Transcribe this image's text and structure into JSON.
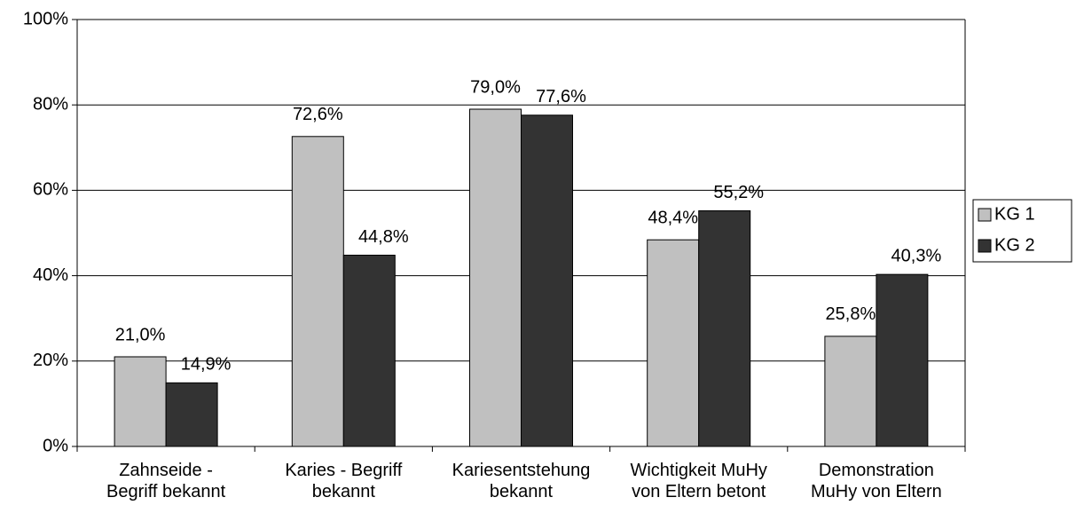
{
  "chart_data": {
    "type": "bar",
    "categories": [
      "Zahnseide -\nBegriff bekannt",
      "Karies - Begriff\nbekannt",
      "Kariesentstehung\nbekannt",
      "Wichtigkeit MuHy\nvon Eltern betont",
      "Demonstration\nMuHy von Eltern"
    ],
    "series": [
      {
        "name": "KG 1",
        "color": "#c0c0c0",
        "values": [
          21.0,
          72.6,
          79.0,
          48.4,
          25.8
        ],
        "value_labels": [
          "21,0%",
          "72,6%",
          "79,0%",
          "48,4%",
          "25,8%"
        ]
      },
      {
        "name": "KG 2",
        "color": "#333333",
        "values": [
          14.9,
          44.8,
          77.6,
          55.2,
          40.3
        ],
        "value_labels": [
          "14,9%",
          "44,8%",
          "77,6%",
          "55,2%",
          "40,3%"
        ]
      }
    ],
    "ylim": [
      0,
      100
    ],
    "yticks": [
      {
        "value": 0,
        "label": "0%"
      },
      {
        "value": 20,
        "label": "20%"
      },
      {
        "value": 40,
        "label": "40%"
      },
      {
        "value": 60,
        "label": "60%"
      },
      {
        "value": 80,
        "label": "80%"
      },
      {
        "value": 100,
        "label": "100%"
      }
    ],
    "grid": true,
    "legend": "right"
  }
}
